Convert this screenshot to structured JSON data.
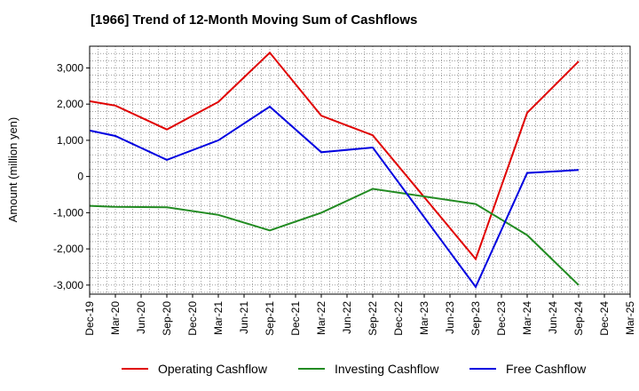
{
  "chart_data": {
    "type": "line",
    "title": "[1966]  Trend of 12-Month Moving Sum of Cashflows",
    "ylabel": "Amount (million yen)",
    "xlabel": "",
    "ylim": [
      -3250,
      3600
    ],
    "yticks": [
      3000,
      2000,
      1000,
      0,
      -1000,
      -2000,
      -3000
    ],
    "ytick_labels": [
      "3,000",
      "2,000",
      "1,000",
      "0",
      "-1,000",
      "-2,000",
      "-3,000"
    ],
    "categories": [
      "Dec-19",
      "Mar-20",
      "Jun-20",
      "Sep-20",
      "Dec-20",
      "Mar-21",
      "Jun-21",
      "Sep-21",
      "Dec-21",
      "Mar-22",
      "Jun-22",
      "Sep-22",
      "Dec-22",
      "Mar-23",
      "Jun-23",
      "Sep-23",
      "Dec-23",
      "Mar-24",
      "Jun-24",
      "Sep-24",
      "Dec-24",
      "Mar-25"
    ],
    "grid": true,
    "legend_position": "bottom",
    "series": [
      {
        "name": "Operating Cashflow",
        "color": "#e00000",
        "values": [
          2080,
          1960,
          null,
          1300,
          null,
          2060,
          null,
          3420,
          null,
          1680,
          null,
          1140,
          null,
          null,
          null,
          -2280,
          null,
          1760,
          null,
          3180,
          null,
          null
        ]
      },
      {
        "name": "Investing Cashflow",
        "color": "#228b22",
        "values": [
          -810,
          -840,
          null,
          -850,
          null,
          -1060,
          null,
          -1490,
          null,
          -1000,
          null,
          -340,
          null,
          null,
          null,
          -760,
          null,
          -1620,
          null,
          -3000,
          null,
          null
        ]
      },
      {
        "name": "Free Cashflow",
        "color": "#0000e0",
        "values": [
          1270,
          1120,
          null,
          460,
          null,
          1000,
          null,
          1930,
          null,
          670,
          null,
          800,
          null,
          null,
          null,
          -3050,
          null,
          100,
          null,
          180,
          null,
          null
        ]
      }
    ]
  }
}
